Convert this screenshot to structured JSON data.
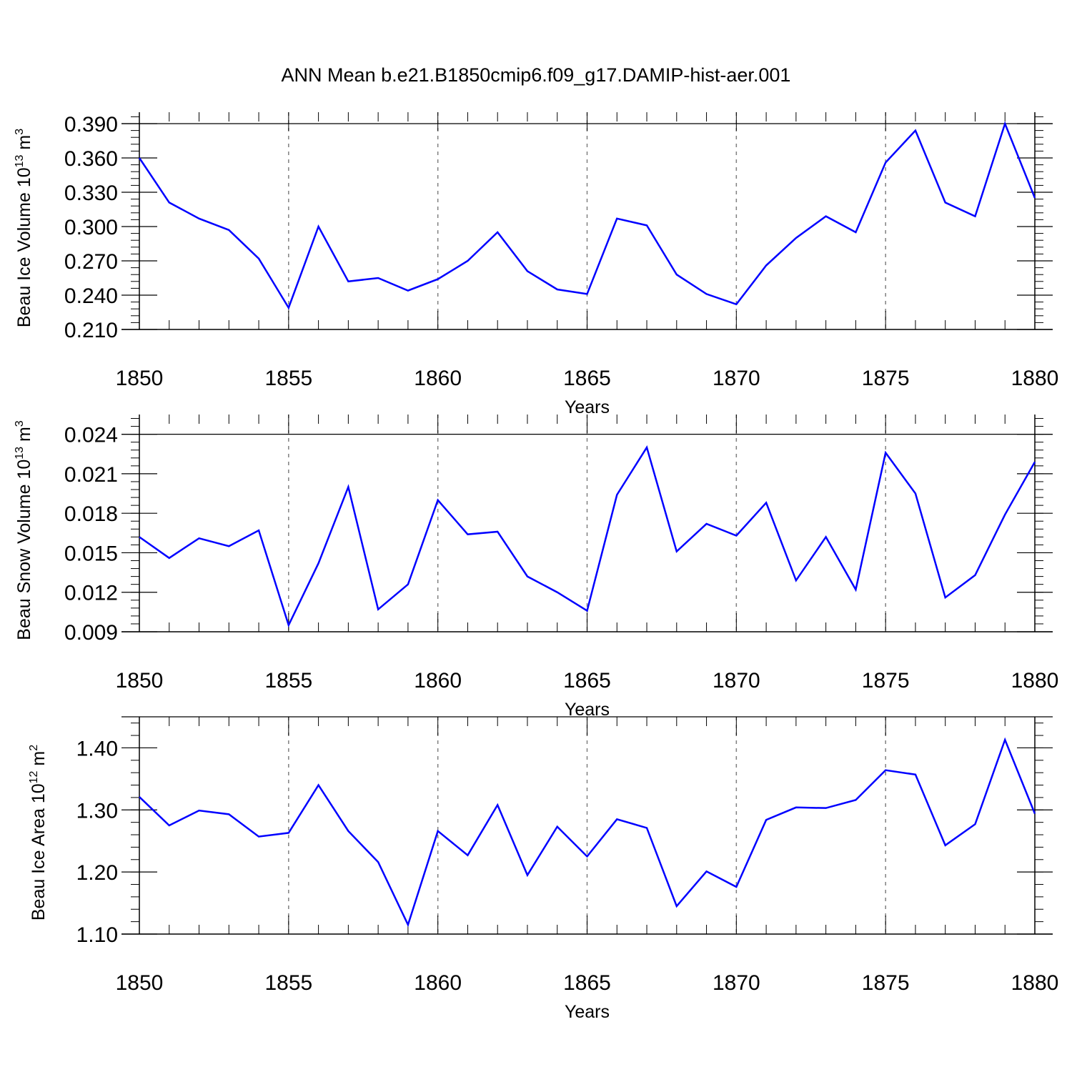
{
  "title": "ANN Mean b.e21.B1850cmip6.f09_g17.DAMIP-hist-aer.001",
  "colors": {
    "line": "#0000ff",
    "axis": "#000000",
    "grid": "#808080"
  },
  "chart_data": [
    {
      "type": "line",
      "xlabel": "Years",
      "ylabel": {
        "text": "Beau Ice Volume 10",
        "sup": "13",
        "unit": " m",
        "unit_sup": "3"
      },
      "xlim": [
        1850,
        1880
      ],
      "ylim": [
        0.21,
        0.4
      ],
      "x_ticks": [
        "1850",
        "1855",
        "1860",
        "1865",
        "1870",
        "1875",
        "1880"
      ],
      "y_ticks": [
        "0.210",
        "0.240",
        "0.270",
        "0.300",
        "0.330",
        "0.360",
        "0.390"
      ],
      "grid": "vertical dashed at major x ticks",
      "x": [
        1850,
        1851,
        1852,
        1853,
        1854,
        1855,
        1856,
        1857,
        1858,
        1859,
        1860,
        1861,
        1862,
        1863,
        1864,
        1865,
        1866,
        1867,
        1868,
        1869,
        1870,
        1871,
        1872,
        1873,
        1874,
        1875,
        1876,
        1877,
        1878,
        1879,
        1880
      ],
      "values": [
        0.36,
        0.321,
        0.307,
        0.297,
        0.272,
        0.229,
        0.3,
        0.252,
        0.255,
        0.244,
        0.254,
        0.27,
        0.295,
        0.261,
        0.245,
        0.241,
        0.307,
        0.301,
        0.258,
        0.241,
        0.232,
        0.266,
        0.29,
        0.309,
        0.295,
        0.356,
        0.384,
        0.321,
        0.309,
        0.39,
        0.325
      ]
    },
    {
      "type": "line",
      "xlabel": "Years",
      "ylabel": {
        "text": "Beau Snow Volume 10",
        "sup": "13",
        "unit": " m",
        "unit_sup": "3"
      },
      "xlim": [
        1850,
        1880
      ],
      "ylim": [
        0.009,
        0.0255
      ],
      "x_ticks": [
        "1850",
        "1855",
        "1860",
        "1865",
        "1870",
        "1875",
        "1880"
      ],
      "y_ticks": [
        "0.009",
        "0.012",
        "0.015",
        "0.018",
        "0.021",
        "0.024"
      ],
      "grid": "vertical dashed at major x ticks",
      "x": [
        1850,
        1851,
        1852,
        1853,
        1854,
        1855,
        1856,
        1857,
        1858,
        1859,
        1860,
        1861,
        1862,
        1863,
        1864,
        1865,
        1866,
        1867,
        1868,
        1869,
        1870,
        1871,
        1872,
        1873,
        1874,
        1875,
        1876,
        1877,
        1878,
        1879,
        1880
      ],
      "values": [
        0.0162,
        0.0146,
        0.0161,
        0.0155,
        0.0167,
        0.0095,
        0.0142,
        0.02,
        0.0107,
        0.0126,
        0.019,
        0.0164,
        0.0166,
        0.0132,
        0.012,
        0.0106,
        0.0194,
        0.023,
        0.0151,
        0.0172,
        0.0163,
        0.0188,
        0.0129,
        0.0162,
        0.0122,
        0.0226,
        0.0195,
        0.0116,
        0.0133,
        0.0179,
        0.0219
      ]
    },
    {
      "type": "line",
      "xlabel": "Years",
      "ylabel": {
        "text": "Beau Ice Area 10",
        "sup": "12",
        "unit": " m",
        "unit_sup": "2"
      },
      "xlim": [
        1850,
        1880
      ],
      "ylim": [
        1.1,
        1.45
      ],
      "x_ticks": [
        "1850",
        "1855",
        "1860",
        "1865",
        "1870",
        "1875",
        "1880"
      ],
      "y_ticks": [
        "1.10",
        "1.20",
        "1.30",
        "1.40"
      ],
      "grid": "vertical dashed at major x ticks",
      "x": [
        1850,
        1851,
        1852,
        1853,
        1854,
        1855,
        1856,
        1857,
        1858,
        1859,
        1860,
        1861,
        1862,
        1863,
        1864,
        1865,
        1866,
        1867,
        1868,
        1869,
        1870,
        1871,
        1872,
        1873,
        1874,
        1875,
        1876,
        1877,
        1878,
        1879,
        1880
      ],
      "values": [
        1.321,
        1.275,
        1.299,
        1.293,
        1.257,
        1.263,
        1.34,
        1.266,
        1.216,
        1.115,
        1.266,
        1.227,
        1.308,
        1.195,
        1.273,
        1.225,
        1.285,
        1.271,
        1.145,
        1.201,
        1.176,
        1.284,
        1.304,
        1.303,
        1.316,
        1.364,
        1.357,
        1.243,
        1.277,
        1.413,
        1.294
      ]
    }
  ]
}
